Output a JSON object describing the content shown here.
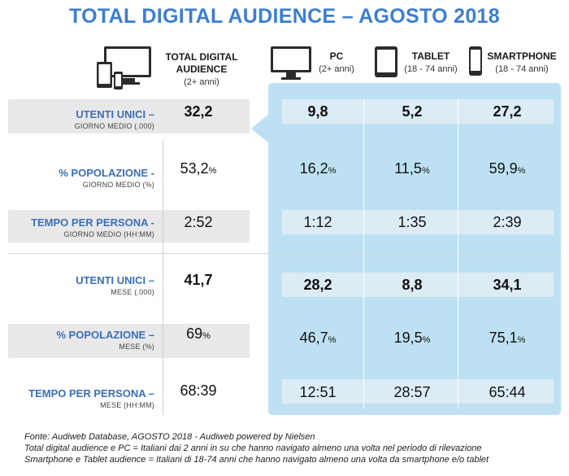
{
  "title": "TOTAL DIGITAL AUDIENCE – AGOSTO 2018",
  "headers": {
    "total": {
      "label": "TOTAL DIGITAL AUDIENCE",
      "sub": "(2+ anni)"
    },
    "pc": {
      "label": "PC",
      "sub": "(2+ anni)"
    },
    "tablet": {
      "label": "TABLET",
      "sub": "(18 - 74 anni)"
    },
    "smartphone": {
      "label": "SMARTPHONE",
      "sub": "(18 - 74 anni)"
    }
  },
  "rows": [
    {
      "label": "UTENTI UNICI –",
      "sub": "GIORNO MEDIO (.000)",
      "total": "32,2",
      "pc": "9,8",
      "tablet": "5,2",
      "smartphone": "27,2",
      "unit": ""
    },
    {
      "label": "% POPOLAZIONE -",
      "sub": "GIORNO MEDIO (%)",
      "total": "53,2",
      "pc": "16,2",
      "tablet": "11,5",
      "smartphone": "59,9",
      "unit": "%"
    },
    {
      "label": "TEMPO PER PERSONA -",
      "sub": "GIORNO MEDIO (HH:MM)",
      "total": "2:52",
      "pc": "1:12",
      "tablet": "1:35",
      "smartphone": "2:39",
      "unit": ""
    },
    {
      "label": "UTENTI UNICI –",
      "sub": "MESE (.000)",
      "total": "41,7",
      "pc": "28,2",
      "tablet": "8,8",
      "smartphone": "34,1",
      "unit": ""
    },
    {
      "label": "% POPOLAZIONE –",
      "sub": "MESE (%)",
      "total": "69",
      "pc": "46,7",
      "tablet": "19,5",
      "smartphone": "75,1",
      "unit": "%"
    },
    {
      "label": "TEMPO PER PERSONA –",
      "sub": "MESE (HH:MM)",
      "total": "68:39",
      "pc": "12:51",
      "tablet": "28:57",
      "smartphone": "65:44",
      "unit": ""
    }
  ],
  "footer": {
    "line1": "Fonte: Audiweb Database, AGOSTO 2018 - Audiweb powered by Nielsen",
    "line2": "Total digital audience e PC = Italiani dai 2 anni in su che hanno navigato almeno una volta nel periodo di rilevazione",
    "line3": "Smartphone e Tablet audience = Italiani di 18-74 anni che hanno navigato almeno una volta da smartphone e/o tablet"
  },
  "colors": {
    "title": "#3b7ed1",
    "label": "#3a6fb8",
    "panel": "#bde1f2"
  },
  "icons": [
    "devices-icon",
    "monitor-icon",
    "tablet-icon",
    "smartphone-icon"
  ]
}
